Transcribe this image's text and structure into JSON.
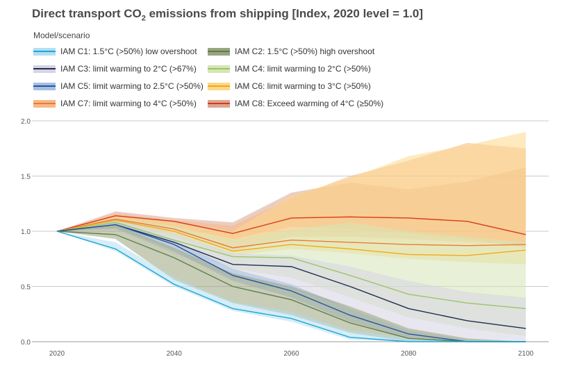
{
  "chart_data": {
    "type": "area",
    "title_main": "Direct transport CO",
    "title_sub": "2",
    "title_rest": " emissions from shipping [Index, 2020 level = 1.0]",
    "legend_title": "Model/scenario",
    "ylim": [
      0,
      2.0
    ],
    "xlim": [
      2020,
      2100
    ],
    "xticks": [
      "2020",
      "2040",
      "2060",
      "2080",
      "2100"
    ],
    "yticks": [
      "0.0",
      "0.5",
      "1.0",
      "1.5",
      "2.0"
    ],
    "grid": true,
    "x": [
      2020,
      2030,
      2040,
      2050,
      2060,
      2070,
      2080,
      2090,
      2100
    ],
    "series": [
      {
        "name": "IAM C1: 1.5°C (>50%) low overshoot",
        "band": "#b3dff0",
        "line": "#1aa7d9",
        "median": [
          1.0,
          0.84,
          0.52,
          0.3,
          0.21,
          0.04,
          0.0,
          0.0,
          0.0
        ],
        "low": [
          1.0,
          0.82,
          0.5,
          0.28,
          0.18,
          0.02,
          0.0,
          0.0,
          0.0
        ],
        "high": [
          1.0,
          0.9,
          0.58,
          0.36,
          0.27,
          0.1,
          0.03,
          0.0,
          0.0
        ]
      },
      {
        "name": "IAM C2: 1.5°C (>50%) high overshoot",
        "band": "#9aa47e",
        "line": "#5f7d4e",
        "median": [
          1.0,
          0.97,
          0.76,
          0.5,
          0.38,
          0.17,
          0.03,
          0.0,
          0.0
        ],
        "low": [
          1.0,
          0.93,
          0.56,
          0.35,
          0.24,
          0.08,
          0.0,
          0.0,
          0.0
        ],
        "high": [
          1.0,
          1.06,
          0.85,
          0.62,
          0.5,
          0.32,
          0.12,
          0.03,
          0.0
        ]
      },
      {
        "name": "IAM C3: limit warming to 2°C (>67%)",
        "band": "#d6d4e4",
        "line": "#1f2d4f",
        "median": [
          1.0,
          1.06,
          0.9,
          0.7,
          0.68,
          0.5,
          0.3,
          0.19,
          0.12
        ],
        "low": [
          1.0,
          1.02,
          0.8,
          0.58,
          0.48,
          0.3,
          0.1,
          0.02,
          0.0
        ],
        "high": [
          1.0,
          1.1,
          0.98,
          0.8,
          0.78,
          0.68,
          0.55,
          0.45,
          0.4
        ]
      },
      {
        "name": "IAM C4: limit warming to 2°C (>50%)",
        "band": "#d5e6b6",
        "line": "#9cc563",
        "median": [
          1.0,
          1.08,
          0.92,
          0.77,
          0.76,
          0.6,
          0.43,
          0.35,
          0.3
        ],
        "low": [
          1.0,
          1.02,
          0.84,
          0.66,
          0.58,
          0.4,
          0.22,
          0.12,
          0.05
        ],
        "high": [
          1.0,
          1.12,
          1.05,
          0.92,
          1.02,
          1.08,
          1.0,
          0.95,
          0.9
        ]
      },
      {
        "name": "IAM C5: limit warming to 2.5°C (>50%)",
        "band": "#a4bfe2",
        "line": "#27549a",
        "median": [
          1.0,
          1.06,
          0.88,
          0.6,
          0.46,
          0.24,
          0.07,
          0.0,
          0.0
        ],
        "low": [
          1.0,
          1.03,
          0.82,
          0.55,
          0.4,
          0.18,
          0.03,
          0.0,
          0.0
        ],
        "high": [
          1.0,
          1.09,
          0.92,
          0.66,
          0.52,
          0.3,
          0.1,
          0.02,
          0.0
        ]
      },
      {
        "name": "IAM C6: limit warming to 3°C (>50%)",
        "band": "#fbd98a",
        "line": "#f2a818",
        "median": [
          1.0,
          1.1,
          1.0,
          0.82,
          0.88,
          0.84,
          0.79,
          0.78,
          0.83
        ],
        "low": [
          1.0,
          1.06,
          0.95,
          0.78,
          0.84,
          0.8,
          0.75,
          0.72,
          0.7
        ],
        "high": [
          1.0,
          1.14,
          1.08,
          1.0,
          1.32,
          1.48,
          1.68,
          1.78,
          1.9
        ]
      },
      {
        "name": "IAM C7: limit warming to 4°C (>50%)",
        "band": "#f6b889",
        "line": "#eb7a3a",
        "median": [
          1.0,
          1.11,
          1.02,
          0.85,
          0.92,
          0.9,
          0.88,
          0.87,
          0.88
        ],
        "low": [
          1.0,
          1.07,
          0.98,
          0.82,
          0.95,
          0.95,
          0.93,
          0.9,
          0.88
        ],
        "high": [
          1.0,
          1.16,
          1.1,
          1.05,
          1.3,
          1.5,
          1.64,
          1.8,
          1.75
        ]
      },
      {
        "name": "IAM C8: Exceed warming of 4°C (≥50%)",
        "band": "#dba68f",
        "line": "#d9391a",
        "median": [
          1.0,
          1.14,
          1.09,
          0.98,
          1.12,
          1.13,
          1.12,
          1.09,
          0.97
        ],
        "low": [
          1.0,
          1.1,
          1.04,
          0.93,
          1.04,
          1.02,
          0.98,
          0.93,
          0.85
        ],
        "high": [
          1.0,
          1.18,
          1.12,
          1.08,
          1.35,
          1.44,
          1.38,
          1.45,
          1.58
        ]
      }
    ]
  }
}
